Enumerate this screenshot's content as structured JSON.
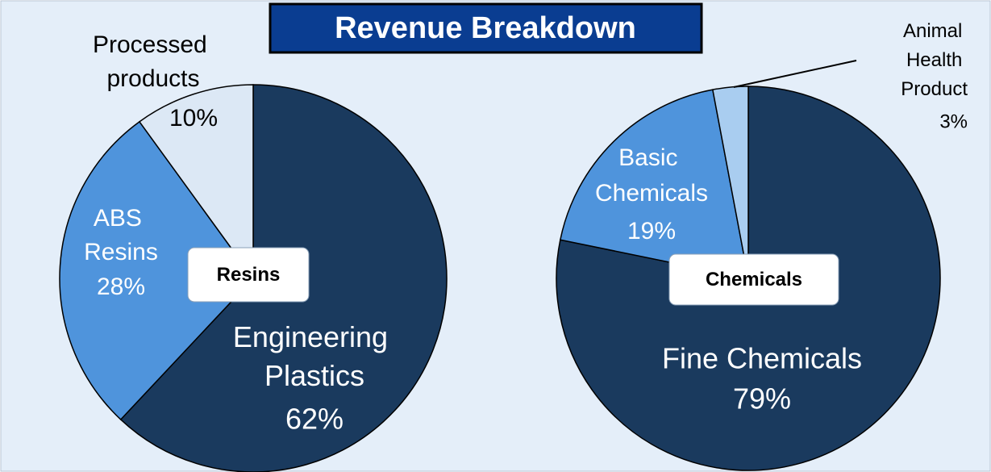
{
  "title": "Revenue Breakdown",
  "chart_data": [
    {
      "type": "pie",
      "label": "Resins",
      "categories": [
        "Engineering Plastics",
        "ABS Resins",
        "Processed products"
      ],
      "values": [
        62,
        28,
        10
      ],
      "value_labels": [
        "62%",
        "28%",
        "10%"
      ],
      "colors": [
        "#1a3a5e",
        "#4f94dc",
        "#dce8f5"
      ]
    },
    {
      "type": "pie",
      "label": "Chemicals",
      "categories": [
        "Fine Chemicals",
        "Basic Chemicals",
        "Animal Health Product"
      ],
      "values": [
        79,
        19,
        3
      ],
      "value_labels": [
        "79%",
        "19%",
        "3%"
      ],
      "colors": [
        "#1a3a5e",
        "#4f94dc",
        "#a9cdf0"
      ]
    }
  ]
}
